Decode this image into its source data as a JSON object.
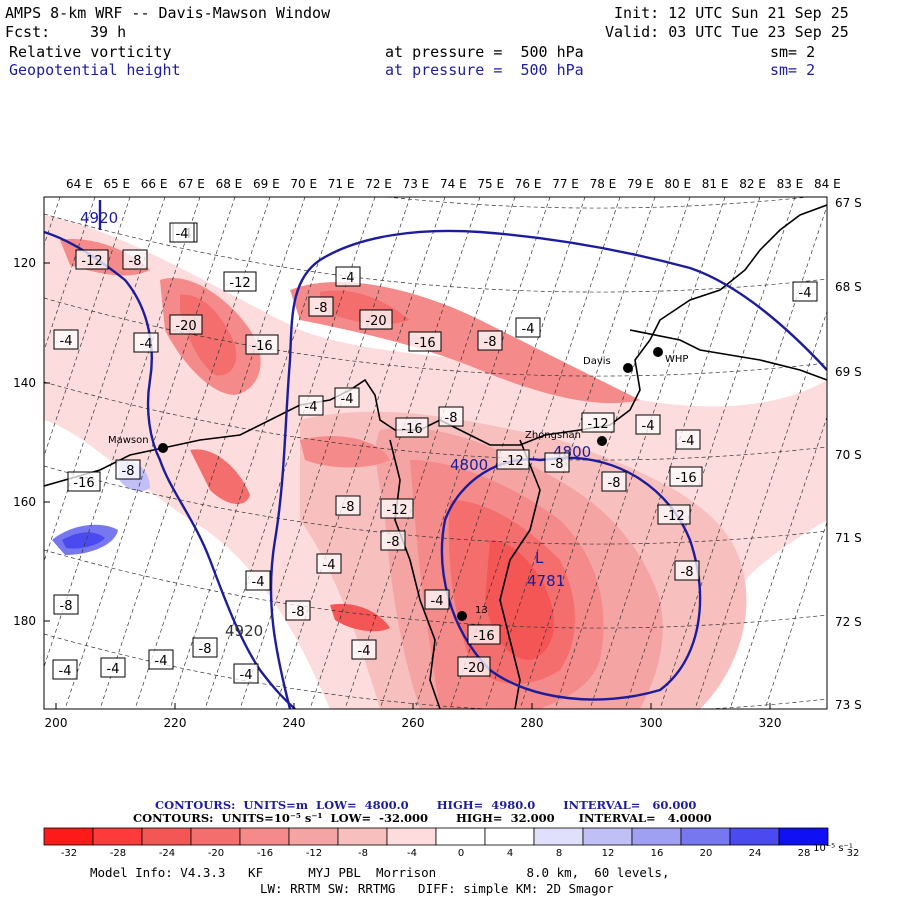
{
  "header": {
    "model": "AMPS 8-km WRF -- Davis-Mawson Window",
    "init": "Init: 12 UTC Sun 21 Sep 25",
    "fcst_label": "Fcst:",
    "fcst_value": "39 h",
    "valid": "Valid: 03 UTC Tue 23 Sep 25",
    "field1_name": "Relative vorticity",
    "field1_level": "at pressure =  500 hPa",
    "field1_smooth": "sm= 2",
    "field2_name": "Geopotential height",
    "field2_level": "at pressure =  500 hPa",
    "field2_smooth": "sm= 2"
  },
  "axes": {
    "top_lon_labels": [
      "64 E",
      "65 E",
      "66 E",
      "67 E",
      "68 E",
      "69 E",
      "70 E",
      "71 E",
      "72 E",
      "73 E",
      "74 E",
      "75 E",
      "76 E",
      "77 E",
      "78 E",
      "79 E",
      "80 E",
      "81 E",
      "82 E",
      "83 E",
      "84 E"
    ],
    "right_lat_labels": [
      "67 S",
      "68 S",
      "69 S",
      "70 S",
      "71 S",
      "72 S",
      "73 S"
    ],
    "left_y_labels": [
      "120",
      "140",
      "160",
      "180"
    ],
    "bottom_x_labels": [
      "200",
      "220",
      "240",
      "260",
      "280",
      "300",
      "320"
    ]
  },
  "stations": [
    {
      "name": "Mawson"
    },
    {
      "name": "Davis"
    },
    {
      "name": "WHP"
    },
    {
      "name": "Zhongshan"
    },
    {
      "name": "13"
    }
  ],
  "height_labels": [
    "4920",
    "4800",
    "4800",
    "4920"
  ],
  "low_center": {
    "letter": "L",
    "value": "4781"
  },
  "vorticity_labels": [
    "-12",
    "-8",
    "-4",
    "-12",
    "-20",
    "-16",
    "-4",
    "-4",
    "-8",
    "-20",
    "-16",
    "-8",
    "-4",
    "-4",
    "-4",
    "-16",
    "-8",
    "-12",
    "-8",
    "-12",
    "-4",
    "-8",
    "-16",
    "-4",
    "-12",
    "-8",
    "-8",
    "-8",
    "-8",
    "-4",
    "-4",
    "-8",
    "-4",
    "-4",
    "-4",
    "-8",
    "-4",
    "-4",
    "-4",
    "-16",
    "-20",
    "-16",
    "-8",
    "-4",
    "-4",
    "-4",
    "-12"
  ],
  "contour_info": {
    "line1": "CONTOURS:  UNITS=m  LOW=  4800.0       HIGH=  4980.0       INTERVAL=   60.000",
    "line2": "CONTOURS:  UNITS=10⁻⁵ s⁻¹  LOW=  -32.000       HIGH=  32.000      INTERVAL=   4.0000"
  },
  "colorbar": {
    "colors": [
      "#ff1a1a",
      "#ff3a3a",
      "#f45555",
      "#f46e6e",
      "#f48a8a",
      "#f5a4a4",
      "#f8bfbf",
      "#fcdcdc",
      "#ffffff",
      "#ffffff",
      "#e0e0fb",
      "#c0c0f6",
      "#a0a0f2",
      "#7777ef",
      "#4a4af0",
      "#1010f5"
    ],
    "tick_labels": [
      "-32",
      "-28",
      "-24",
      "-20",
      "-16",
      "-12",
      "-8",
      "-4",
      "0",
      "4",
      "8",
      "12",
      "16",
      "20",
      "24",
      "28",
      "32"
    ],
    "unit_label": "10⁻⁵ s⁻¹"
  },
  "model_info": {
    "line1": "Model Info: V4.3.3   KF      MYJ PBL  Morrison            8.0 km,  60 levels,",
    "line2": "LW: RRTM SW: RRTMG   DIFF: simple KM: 2D Smagor"
  }
}
